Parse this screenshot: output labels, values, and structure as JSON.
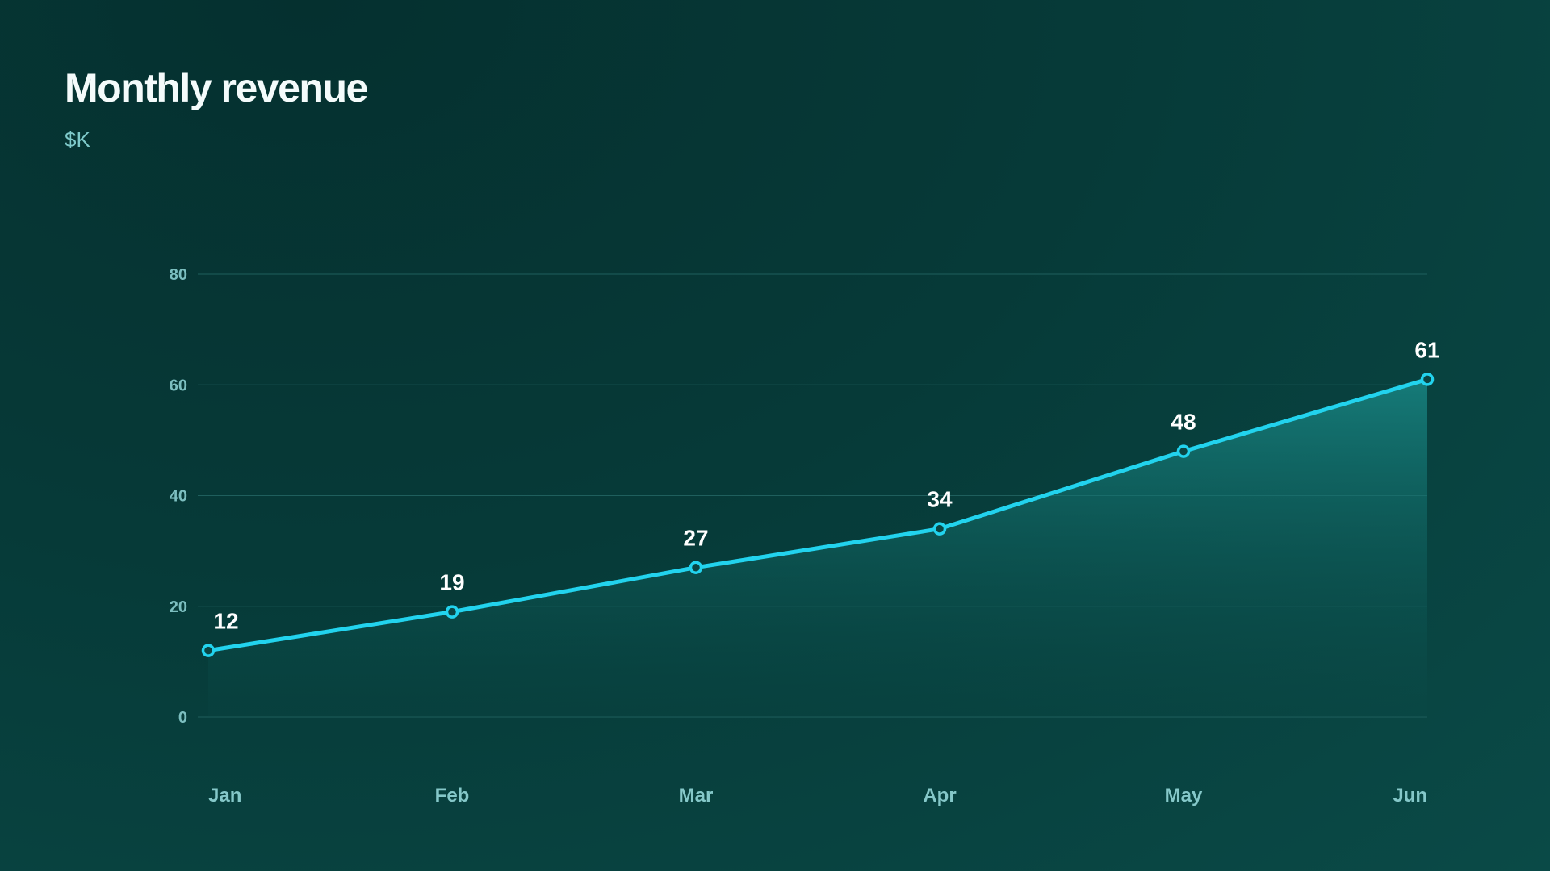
{
  "header": {
    "title": "Monthly revenue",
    "subtitle": "$K"
  },
  "colors": {
    "line": "#22d3ee",
    "grid": "#1f5f5d",
    "area_top": "#1a8e8c",
    "area_bottom": "#0a4a47",
    "tick_text": "#7cbfc0",
    "label_text": "#ffffff"
  },
  "chart_data": {
    "type": "line",
    "title": "Monthly revenue",
    "subtitle": "$K",
    "categories": [
      "Jan",
      "Feb",
      "Mar",
      "Apr",
      "May",
      "Jun"
    ],
    "values": [
      12,
      19,
      27,
      34,
      48,
      61
    ],
    "ylim": [
      0,
      80
    ],
    "yticks": [
      0,
      20,
      40,
      60,
      80
    ],
    "grid": true,
    "area_fill": true,
    "data_labels": true,
    "markers": "hollow-circle"
  }
}
